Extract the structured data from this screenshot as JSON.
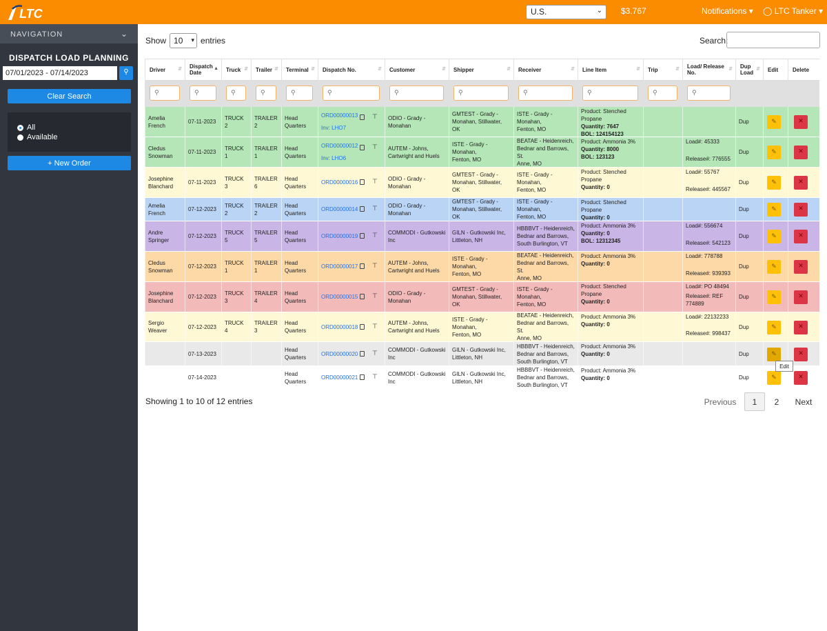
{
  "header": {
    "logo_text": "LTC",
    "region_value": "U.S.",
    "balance": "$3.767",
    "notifications_label": "Notifications",
    "user_label": "LTC Tanker"
  },
  "sidebar": {
    "nav_label": "NAVIGATION",
    "title": "DISPATCH LOAD PLANNING",
    "date_range": "07/01/2023 - 07/14/2023",
    "clear_search_label": "Clear Search",
    "filter_options": [
      "All",
      "Available"
    ],
    "filter_selected": "All",
    "new_order_label": "+ New Order"
  },
  "table_controls": {
    "show_label": "Show",
    "page_length": "10",
    "entries_label": "entries",
    "search_label": "Search:"
  },
  "columns": [
    "Driver",
    "Dispatch Date",
    "Truck",
    "Trailer",
    "Terminal",
    "Dispatch No.",
    "Customer",
    "Shipper",
    "Receiver",
    "Line Item",
    "Trip",
    "Load/ Release No.",
    "Dup Load",
    "Edit",
    "Delete"
  ],
  "colors": {
    "green": "#b5e6b7",
    "yellow": "#fff8d4",
    "blue": "#bad4f5",
    "purple": "#c9b5e6",
    "orange": "#fdd9a8",
    "red": "#f3baba",
    "grey": "#e9e9e9",
    "white": "#ffffff"
  },
  "rows": [
    {
      "color": "green",
      "driver": [
        "Amelia French"
      ],
      "date": "07-11-2023",
      "truck": "TRUCK 2",
      "trailer": "TRAILER 2",
      "terminal": "Head Quarters",
      "dispatch": "ORD00000013",
      "inv": "Inv: LHO7",
      "customer": [
        "ODIO - Grady - Monahan"
      ],
      "shipper": [
        "GMTEST - Grady -",
        "Monahan, Stillwater, OK"
      ],
      "receiver": [
        "ISTE - Grady - Monahan,",
        "Fenton, MO"
      ],
      "product": "Product: Stenched Propane",
      "quantity": "Quantity: 7647",
      "bol": "BOL: 124154123",
      "load": "",
      "release": "",
      "dup": "Dup"
    },
    {
      "color": "green",
      "driver": [
        "Cledus",
        "Snowman"
      ],
      "date": "07-11-2023",
      "truck": "TRUCK 1",
      "trailer": "TRAILER 1",
      "terminal": "Head Quarters",
      "dispatch": "ORD00000012",
      "inv": "Inv: LHO6",
      "customer": [
        "AUTEM - Johns,",
        "Cartwright and Huels"
      ],
      "shipper": [
        "ISTE - Grady - Monahan,",
        "Fenton, MO"
      ],
      "receiver": [
        "BEATAE - Heidenreich,",
        "Bednar and Barrows, St.",
        "Anne, MO"
      ],
      "product": "Product: Ammonia 3%",
      "quantity": "Quantity: 8000",
      "bol": "BOL: 123123",
      "load": "Load#: 45333",
      "release": "Release#: 776555",
      "dup": "Dup"
    },
    {
      "color": "yellow",
      "driver": [
        "Josephine",
        "Blanchard"
      ],
      "date": "07-11-2023",
      "truck": "TRUCK 3",
      "trailer": "TRAILER 6",
      "terminal": "Head Quarters",
      "dispatch": "ORD00000016",
      "inv": "",
      "customer": [
        "ODIO - Grady - Monahan"
      ],
      "shipper": [
        "GMTEST - Grady -",
        "Monahan, Stillwater, OK"
      ],
      "receiver": [
        "ISTE - Grady - Monahan,",
        "Fenton, MO"
      ],
      "product": "Product: Stenched Propane",
      "quantity": "Quantity: 0",
      "bol": "",
      "load": "Load#: 55767",
      "release": "Release#: 445567",
      "dup": "Dup"
    },
    {
      "color": "blue",
      "driver": [
        "Amelia French"
      ],
      "date": "07-12-2023",
      "truck": "TRUCK 2",
      "trailer": "TRAILER 2",
      "terminal": "Head Quarters",
      "dispatch": "ORD00000014",
      "inv": "",
      "customer": [
        "ODIO - Grady - Monahan"
      ],
      "shipper": [
        "GMTEST - Grady -",
        "Monahan, Stillwater, OK"
      ],
      "receiver": [
        "ISTE - Grady - Monahan,",
        "Fenton, MO"
      ],
      "product": "Product: Stenched Propane",
      "quantity": "Quantity: 0",
      "bol": "",
      "load": "",
      "release": "",
      "dup": "Dup"
    },
    {
      "color": "purple",
      "driver": [
        "Andre Springer"
      ],
      "date": "07-12-2023",
      "truck": "TRUCK 5",
      "trailer": "TRAILER 5",
      "terminal": "Head Quarters",
      "dispatch": "ORD00000019",
      "inv": "",
      "customer": [
        "COMMODI - Gutkowski Inc"
      ],
      "shipper": [
        "GILN - Gutkowski Inc,",
        "Littleton, NH"
      ],
      "receiver": [
        "HBBBVT - Heidenreich,",
        "Bednar and Barrows,",
        "South Burlington, VT"
      ],
      "product": "Product: Ammonia 3%",
      "quantity": "Quantity: 0",
      "bol": "BOL: 12312345",
      "load": "Load#: 556674",
      "release": "Release#: 542123",
      "dup": "Dup"
    },
    {
      "color": "orange",
      "driver": [
        "Cledus",
        "Snowman"
      ],
      "date": "07-12-2023",
      "truck": "TRUCK 1",
      "trailer": "TRAILER 1",
      "terminal": "Head Quarters",
      "dispatch": "ORD00000017",
      "inv": "",
      "customer": [
        "AUTEM - Johns,",
        "Cartwright and Huels"
      ],
      "shipper": [
        "ISTE - Grady - Monahan,",
        "Fenton, MO"
      ],
      "receiver": [
        "BEATAE - Heidenreich,",
        "Bednar and Barrows, St.",
        "Anne, MO"
      ],
      "product": "Product: Ammonia 3%",
      "quantity": "Quantity: 0",
      "bol": "",
      "load": "Load#: 778788",
      "release": "Release#: 939393",
      "dup": "Dup"
    },
    {
      "color": "red",
      "driver": [
        "Josephine",
        "Blanchard"
      ],
      "date": "07-12-2023",
      "truck": "TRUCK 3",
      "trailer": "TRAILER 4",
      "terminal": "Head Quarters",
      "dispatch": "ORD00000015",
      "inv": "",
      "customer": [
        "ODIO - Grady - Monahan"
      ],
      "shipper": [
        "GMTEST - Grady -",
        "Monahan, Stillwater, OK"
      ],
      "receiver": [
        "ISTE - Grady - Monahan,",
        "Fenton, MO"
      ],
      "product": "Product: Stenched Propane",
      "quantity": "Quantity: 0",
      "bol": "",
      "load": "Load#: PO 48494",
      "release": "Release#: REF 774889",
      "dup": "Dup"
    },
    {
      "color": "yellow",
      "driver": [
        "Sergio Weaver"
      ],
      "date": "07-12-2023",
      "truck": "TRUCK 4",
      "trailer": "TRAILER 3",
      "terminal": "Head Quarters",
      "dispatch": "ORD00000018",
      "inv": "",
      "customer": [
        "AUTEM - Johns,",
        "Cartwright and Huels"
      ],
      "shipper": [
        "ISTE - Grady - Monahan,",
        "Fenton, MO"
      ],
      "receiver": [
        "BEATAE - Heidenreich,",
        "Bednar and Barrows, St.",
        "Anne, MO"
      ],
      "product": "Product: Ammonia 3%",
      "quantity": "Quantity: 0",
      "bol": "",
      "load": "Load#: 22132233",
      "release": "Release#: 998437",
      "dup": "Dup"
    },
    {
      "color": "grey",
      "driver": [],
      "date": "07-13-2023",
      "truck": "",
      "trailer": "",
      "terminal": "Head Quarters",
      "dispatch": "ORD00000020",
      "inv": "",
      "customer": [
        "COMMODI - Gutkowski Inc"
      ],
      "shipper": [
        "GILN - Gutkowski Inc,",
        "Littleton, NH"
      ],
      "receiver": [
        "HBBBVT - Heidenreich,",
        "Bednar and Barrows,",
        "South Burlington, VT"
      ],
      "product": "Product: Ammonia 3%",
      "quantity": "Quantity: 0",
      "bol": "",
      "load": "",
      "release": "",
      "dup": "Dup"
    },
    {
      "color": "white",
      "driver": [],
      "date": "07-14-2023",
      "truck": "",
      "trailer": "",
      "terminal": "Head Quarters",
      "dispatch": "ORD00000021",
      "inv": "",
      "customer": [
        "COMMODI - Gutkowski Inc"
      ],
      "shipper": [
        "GILN - Gutkowski Inc,",
        "Littleton, NH"
      ],
      "receiver": [
        "HBBBVT - Heidenreich,",
        "Bednar and Barrows,",
        "South Burlington, VT"
      ],
      "product": "Product: Ammonia 3%",
      "quantity": "Quantity: 0",
      "bol": "",
      "load": "",
      "release": "",
      "dup": "Dup"
    }
  ],
  "tooltip": "Edit",
  "footer": {
    "showing_text": "Showing 1 to 10 of 12 entries",
    "previous_label": "Previous",
    "pages": [
      "1",
      "2"
    ],
    "current_page": "1",
    "next_label": "Next"
  }
}
